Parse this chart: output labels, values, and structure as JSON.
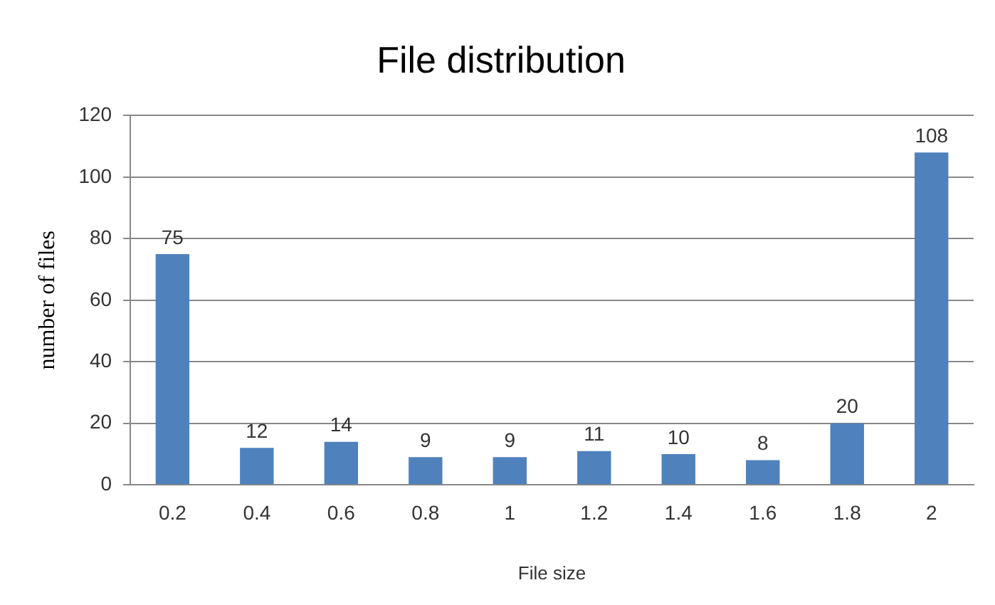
{
  "chart_data": {
    "type": "bar",
    "title": "File distribution",
    "xlabel": "File size",
    "ylabel": "number of files",
    "categories": [
      "0.2",
      "0.4",
      "0.6",
      "0.8",
      "1",
      "1.2",
      "1.4",
      "1.6",
      "1.8",
      "2"
    ],
    "values": [
      75,
      12,
      14,
      9,
      9,
      11,
      10,
      8,
      20,
      108
    ],
    "color": "#4f81bd",
    "ylim": [
      0,
      120
    ],
    "yticks": [
      0,
      20,
      40,
      60,
      80,
      100,
      120
    ],
    "grid": "y",
    "data_labels": true,
    "legend": false
  }
}
